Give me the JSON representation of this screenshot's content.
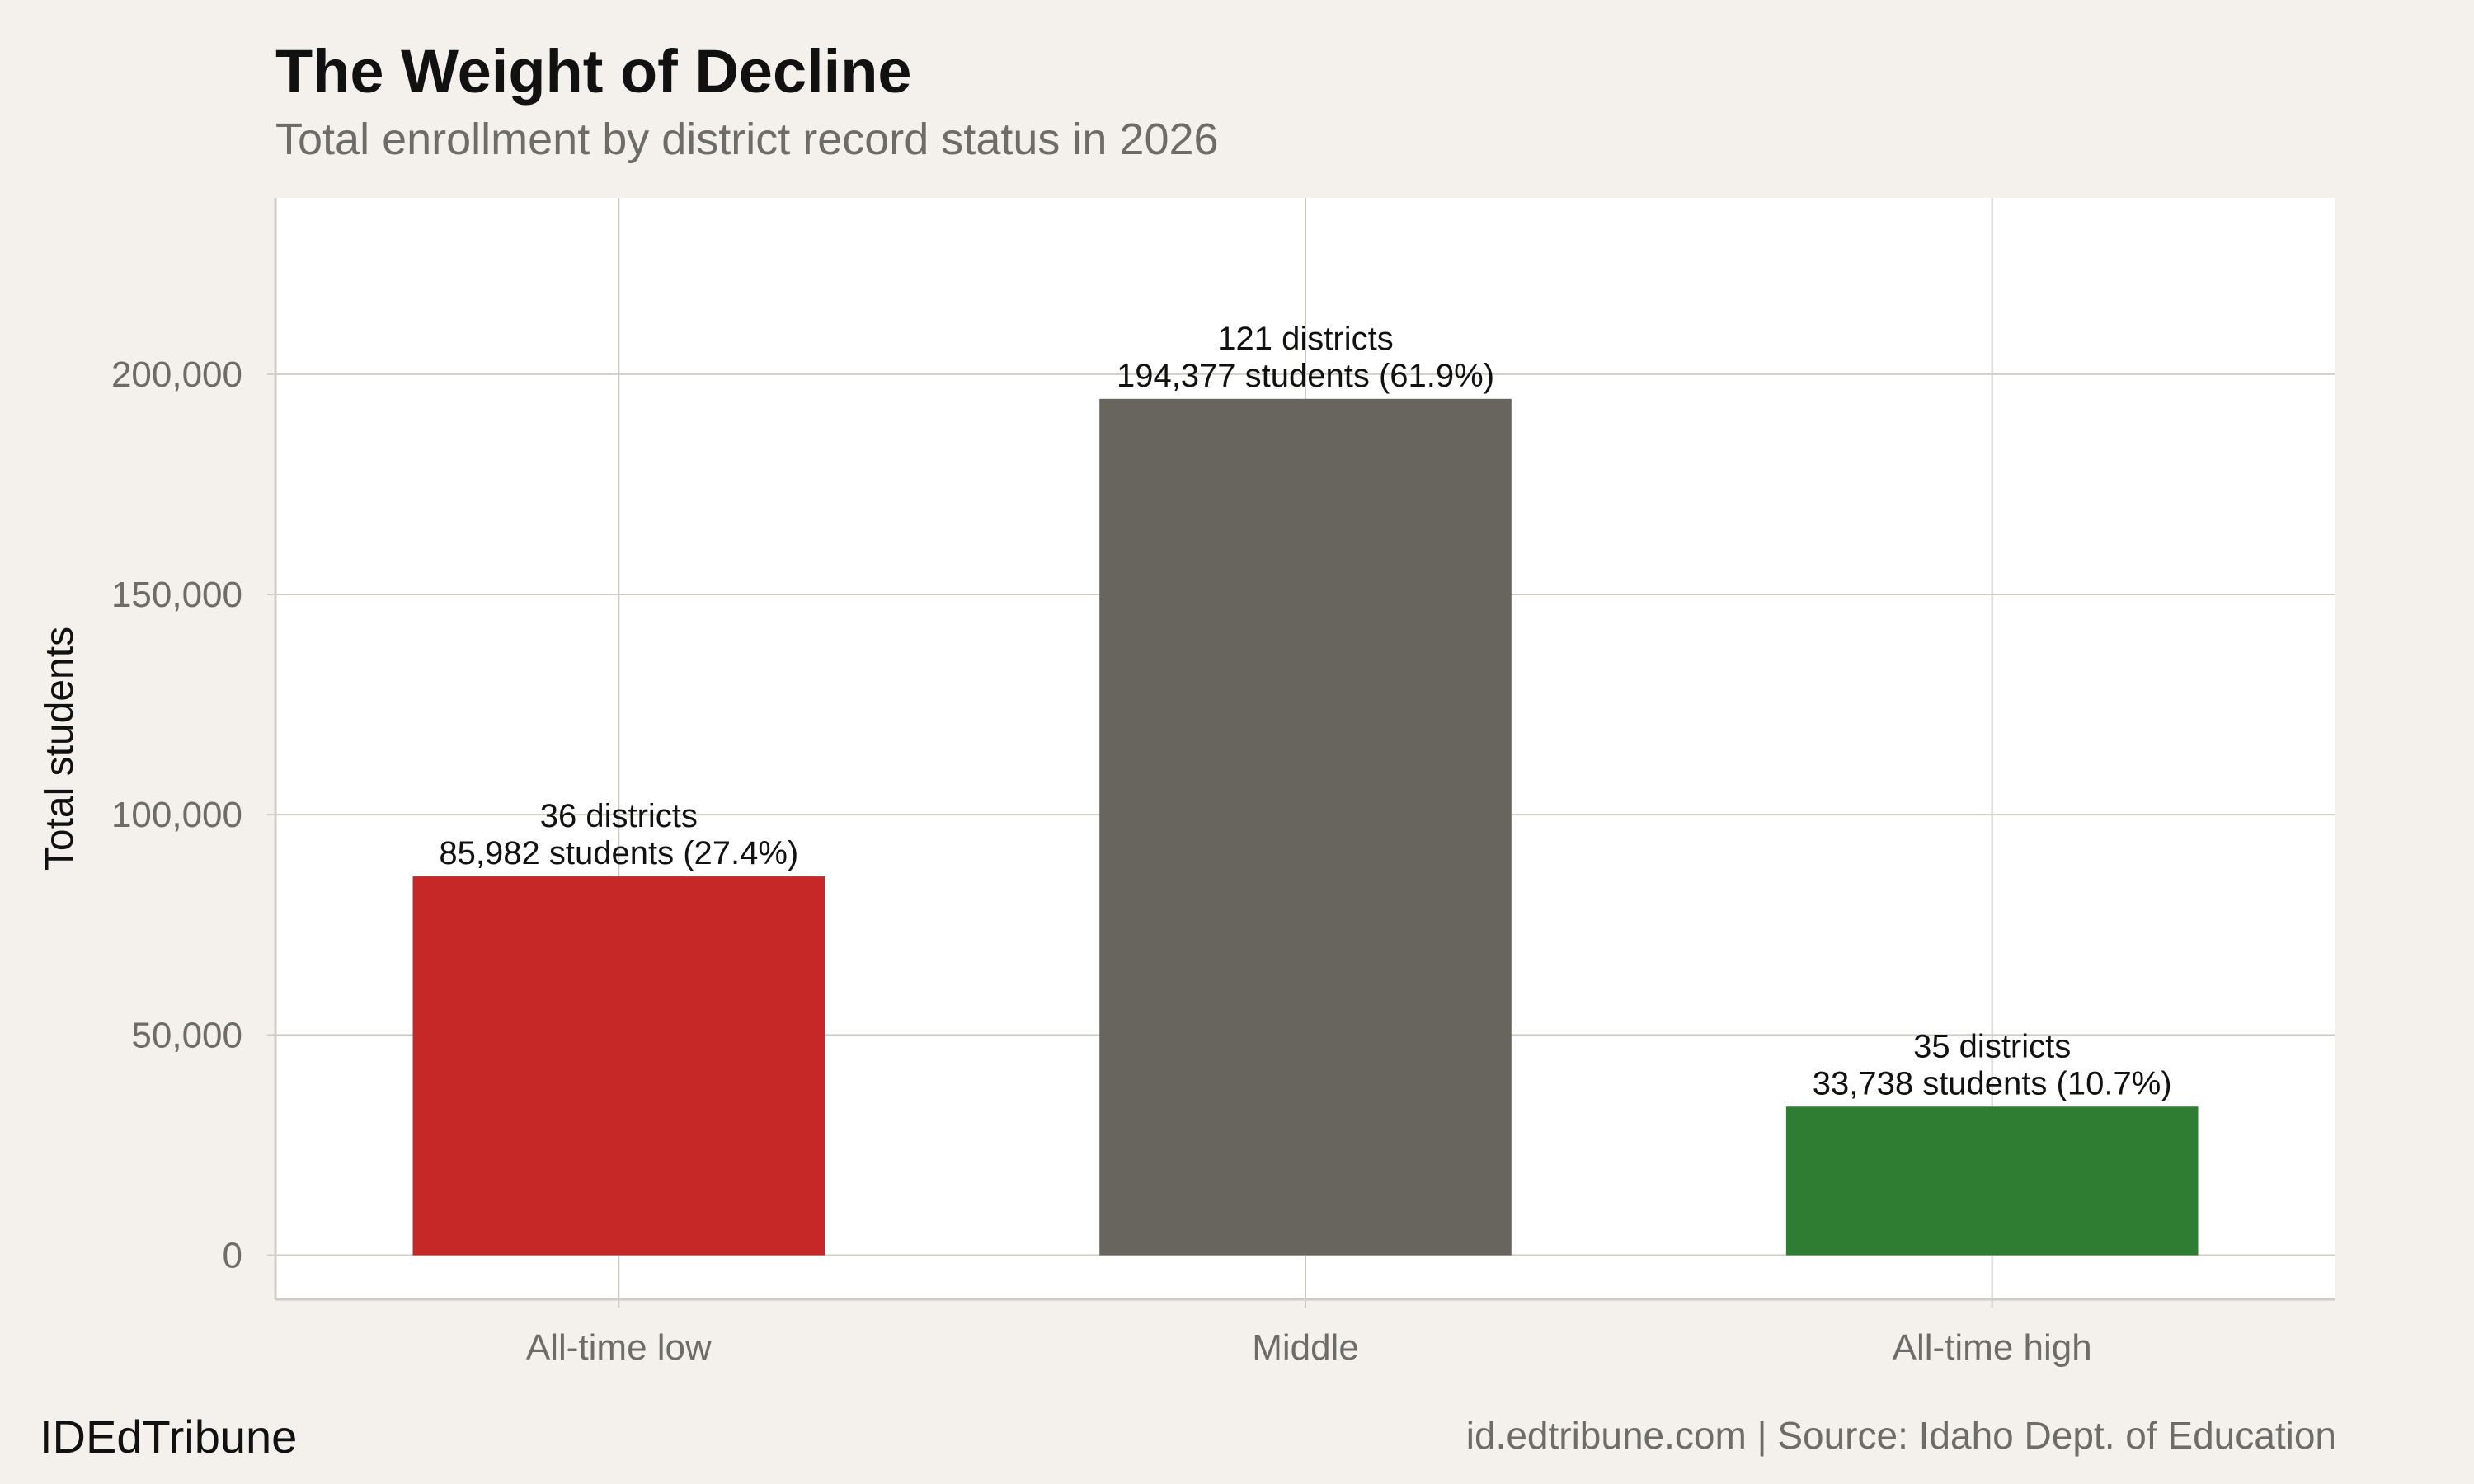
{
  "header": {
    "title": "The Weight of Decline",
    "subtitle": "Total enrollment by district record status in 2026"
  },
  "footer": {
    "brand": "IDEdTribune",
    "source": "id.edtribune.com | Source: Idaho Dept. of Education"
  },
  "colors": {
    "background": "#f4f1ec",
    "panel": "#ffffff",
    "grid": "#cfccc6",
    "all_time_low": "#c62828",
    "middle": "#68645e",
    "all_time_high": "#2e7d32"
  },
  "chart_data": {
    "type": "bar",
    "title": "The Weight of Decline",
    "subtitle": "Total enrollment by district record status in 2026",
    "xlabel": "",
    "ylabel": "Total students",
    "ylim": [
      -10000,
      240000
    ],
    "yticks": [
      0,
      50000,
      100000,
      150000,
      200000
    ],
    "ytick_labels": [
      "0",
      "50,000",
      "100,000",
      "150,000",
      "200,000"
    ],
    "grid": true,
    "categories": [
      "All-time low",
      "Middle",
      "All-time high"
    ],
    "values": [
      85982,
      194377,
      33738
    ],
    "bar_colors": [
      "#c62828",
      "#68645e",
      "#2e7d32"
    ],
    "labels": [
      {
        "line1": "36 districts",
        "line2": "85,982 students (27.4%)"
      },
      {
        "line1": "121 districts",
        "line2": "194,377 students (61.9%)"
      },
      {
        "line1": "35 districts",
        "line2": "33,738 students (10.7%)"
      }
    ]
  }
}
